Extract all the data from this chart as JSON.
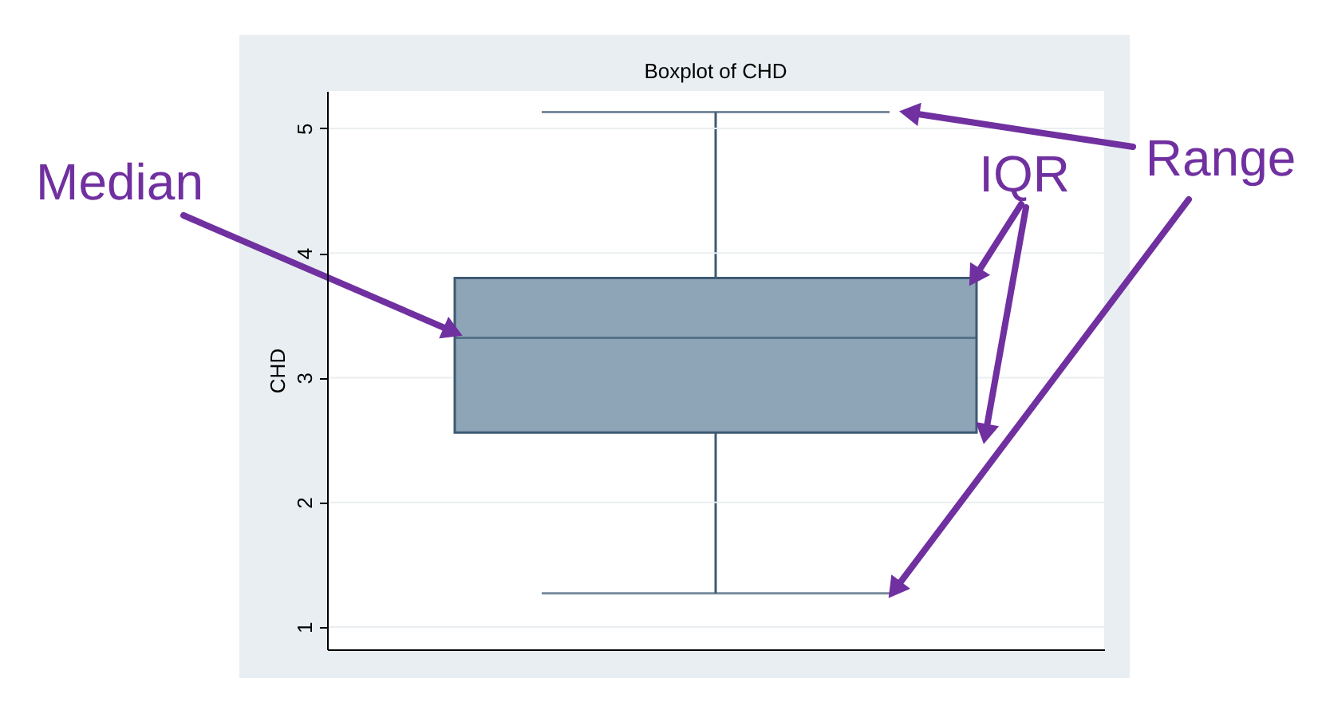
{
  "chart_data": {
    "type": "box",
    "title": "Boxplot of CHD",
    "ylabel": "CHD",
    "categories": [
      null
    ],
    "boxes": [
      {
        "low": 1.27,
        "q1": 2.56,
        "median": 3.32,
        "q3": 3.8,
        "high": 5.13
      }
    ],
    "color": "#8ea5b8",
    "ylim": [
      0.82,
      5.3
    ],
    "yticks": [
      1,
      2,
      3,
      4,
      5
    ],
    "grid": "y",
    "tick_labels": "y",
    "annotations": [
      "Median",
      "IQR",
      "Range"
    ]
  }
}
